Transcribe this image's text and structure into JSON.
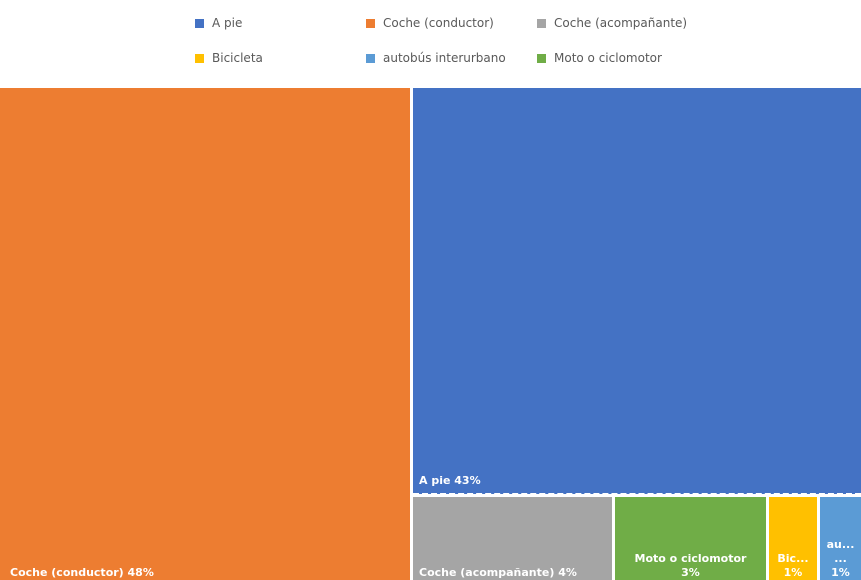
{
  "chart_data": {
    "type": "treemap",
    "title": "",
    "series": [
      {
        "name": "Coche (conductor)",
        "value": 48,
        "label": "Coche (conductor) 48%",
        "color": "#ED7D31"
      },
      {
        "name": "A pie",
        "value": 43,
        "label": "A pie 43%",
        "color": "#4472C4"
      },
      {
        "name": "Coche (acompañante)",
        "value": 4,
        "label": "Coche (acompañante) 4%",
        "color": "#A5A5A5"
      },
      {
        "name": "Moto o ciclomotor",
        "value": 3,
        "label": "Moto o ciclomotor",
        "label2": "3%",
        "color": "#70AD47"
      },
      {
        "name": "Bicicleta",
        "value": 1,
        "label": "Bic...",
        "label2": "1%",
        "color": "#FFC000"
      },
      {
        "name": "autobús interurbano",
        "value": 1,
        "label": "au...",
        "label_mid": "...",
        "label2": "1%",
        "color": "#5B9BD5"
      }
    ],
    "legend": {
      "placement": "top",
      "entries": [
        {
          "name": "A pie",
          "color": "#4472C4"
        },
        {
          "name": "Coche (conductor)",
          "color": "#ED7D31"
        },
        {
          "name": "Coche (acompañante)",
          "color": "#A5A5A5"
        },
        {
          "name": "Bicicleta",
          "color": "#FFC000"
        },
        {
          "name": "autobús interurbano",
          "color": "#5B9BD5"
        },
        {
          "name": "Moto o ciclomotor",
          "color": "#70AD47"
        }
      ]
    }
  }
}
